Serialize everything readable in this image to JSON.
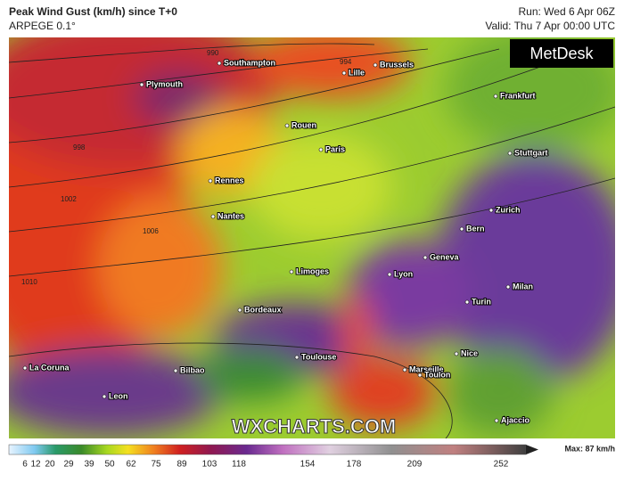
{
  "header": {
    "title": "Peak Wind Gust (km/h) since T+0",
    "model": "ARPEGE 0.1°",
    "run": "Run: Wed 6 Apr 06Z",
    "valid": "Valid: Thu 7 Apr 00:00 UTC"
  },
  "logo": "MetDesk",
  "watermark": "WXCHARTS.COM",
  "cities": [
    "Southampton",
    "Plymouth",
    "Lille",
    "Brussels",
    "Frankfurt",
    "Rouen",
    "Paris",
    "Stuttgart",
    "Rennes",
    "Nantes",
    "Zurich",
    "Bern",
    "Geneva",
    "Limoges",
    "Lyon",
    "Milan",
    "Turin",
    "Bordeaux",
    "Nice",
    "Toulouse",
    "La Coruna",
    "Bilbao",
    "Marseille",
    "Toulon",
    "Leon",
    "Ajaccio"
  ],
  "isobars": [
    "990",
    "994",
    "998",
    "1002",
    "1006",
    "1010"
  ],
  "colorbar": {
    "ticks": [
      "6",
      "12",
      "20",
      "29",
      "39",
      "50",
      "62",
      "75",
      "89",
      "103",
      "118",
      "154",
      "178",
      "209",
      "252"
    ],
    "max": "Max: 87 km/h"
  }
}
